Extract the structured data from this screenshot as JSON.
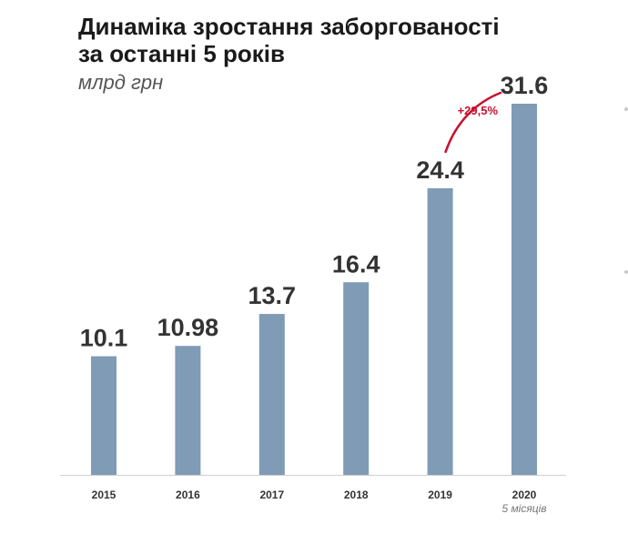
{
  "chart_data": {
    "type": "bar",
    "title_lines": [
      "Динаміка зростання заборгованості",
      "за останні 5 років"
    ],
    "subtitle": "млрд грн",
    "categories": [
      "2015",
      "2016",
      "2017",
      "2018",
      "2019",
      "2020"
    ],
    "values": [
      10.1,
      10.98,
      13.7,
      16.4,
      24.4,
      31.6
    ],
    "value_labels": [
      "10.1",
      "10.98",
      "13.7",
      "16.4",
      "24.4",
      "31.6"
    ],
    "ylim": [
      0,
      31.6
    ],
    "grid": false,
    "legend": "none",
    "bar_color": "#7f9bb5",
    "annotations": [
      {
        "text": "+29,5%",
        "from_category": "2019",
        "to_category": "2020",
        "color": "#c8102e"
      },
      {
        "text": "5 місяців",
        "category": "2020",
        "position": "below-tick"
      }
    ]
  }
}
